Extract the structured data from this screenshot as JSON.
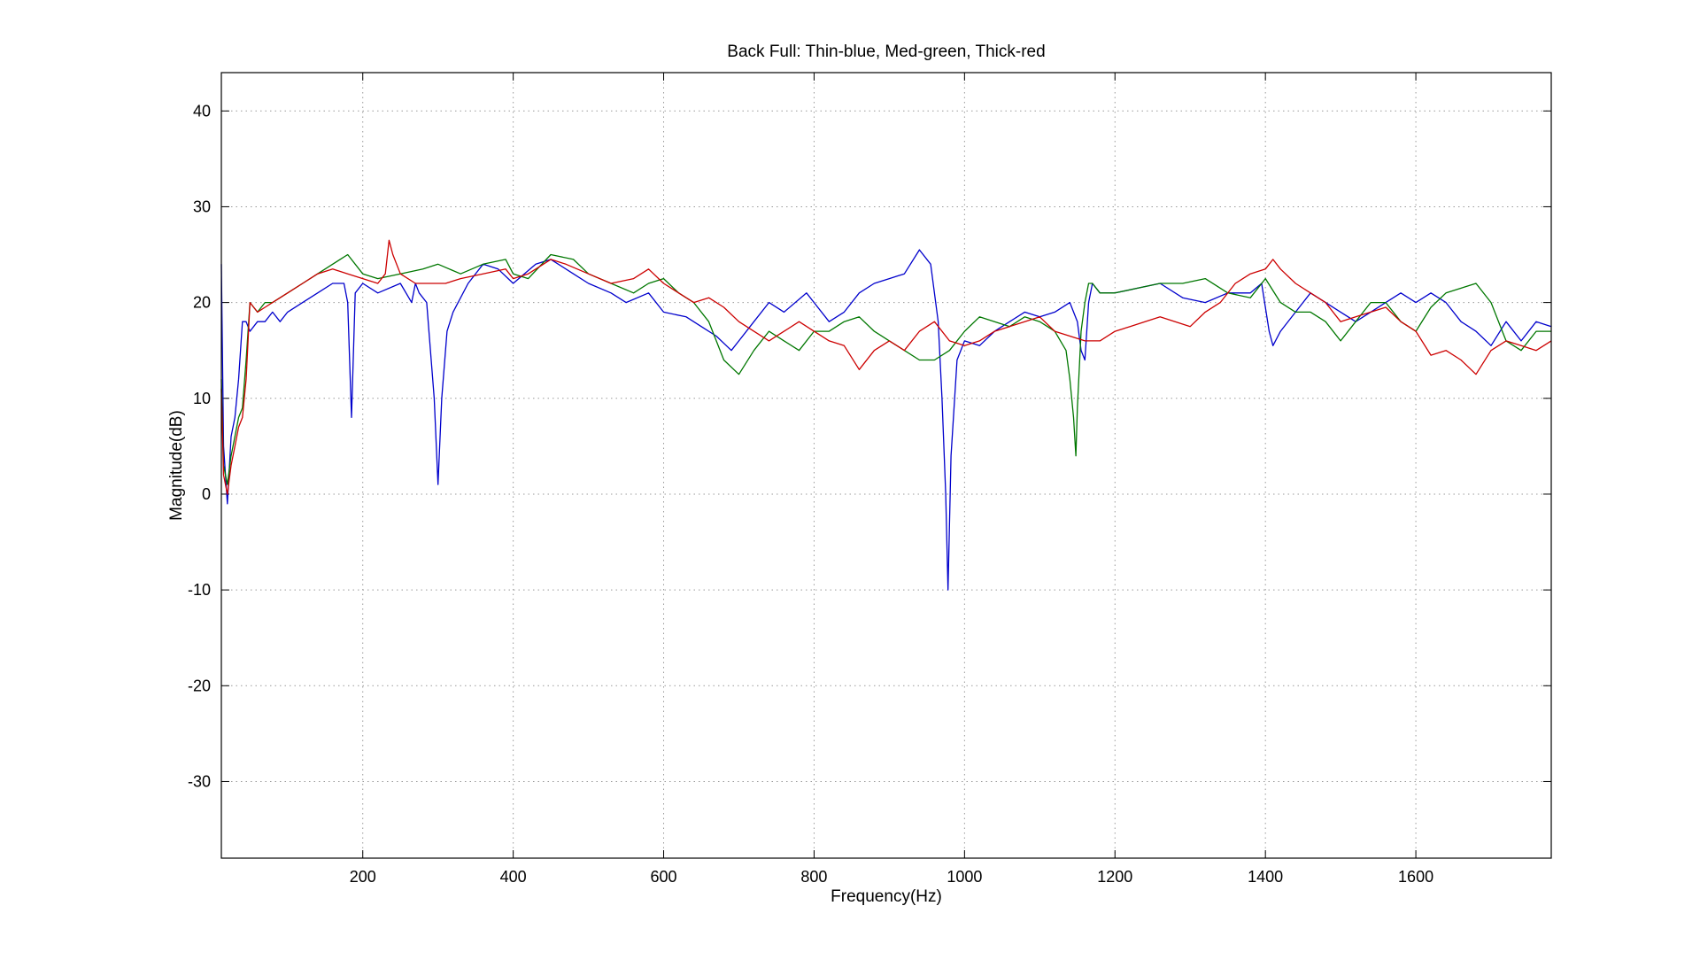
{
  "chart_data": {
    "type": "line",
    "title": "Back Full: Thin-blue, Med-green, Thick-red",
    "xlabel": "Frequency(Hz)",
    "ylabel": "Magnitude(dB)",
    "xlim": [
      12,
      1780
    ],
    "ylim": [
      -38,
      44
    ],
    "x_ticks": [
      200,
      400,
      600,
      800,
      1000,
      1200,
      1400,
      1600
    ],
    "y_ticks": [
      -30,
      -20,
      -10,
      0,
      10,
      20,
      30,
      40
    ],
    "grid": true,
    "series": [
      {
        "color": "#0000cc",
        "x": [
          12,
          15,
          20,
          25,
          30,
          35,
          40,
          45,
          50,
          60,
          70,
          80,
          90,
          100,
          120,
          140,
          160,
          175,
          180,
          185,
          190,
          200,
          220,
          250,
          265,
          270,
          275,
          285,
          295,
          300,
          305,
          312,
          320,
          340,
          360,
          380,
          400,
          430,
          450,
          480,
          500,
          530,
          550,
          580,
          600,
          630,
          650,
          670,
          690,
          700,
          720,
          740,
          760,
          790,
          800,
          820,
          840,
          860,
          880,
          900,
          920,
          940,
          955,
          965,
          970,
          975,
          978,
          982,
          990,
          1000,
          1020,
          1040,
          1060,
          1080,
          1100,
          1120,
          1140,
          1150,
          1155,
          1160,
          1165,
          1170,
          1180,
          1200,
          1230,
          1260,
          1290,
          1320,
          1350,
          1380,
          1395,
          1405,
          1410,
          1420,
          1440,
          1460,
          1480,
          1500,
          1520,
          1540,
          1560,
          1580,
          1600,
          1620,
          1640,
          1660,
          1680,
          1700,
          1720,
          1740,
          1760,
          1780
        ],
        "y": [
          24,
          5,
          -1,
          6,
          8,
          12,
          18,
          18,
          17,
          18,
          18,
          19,
          18,
          19,
          20,
          21,
          22,
          22,
          20,
          8,
          21,
          22,
          21,
          22,
          20,
          22,
          21,
          20,
          10,
          1,
          10,
          17,
          19,
          22,
          24,
          23.5,
          22,
          24,
          24.5,
          23,
          22,
          21,
          20,
          21,
          19,
          18.5,
          17.5,
          16.5,
          15,
          16,
          18,
          20,
          19,
          21,
          20,
          18,
          19,
          21,
          22,
          22.5,
          23,
          25.5,
          24,
          18,
          10,
          0,
          -10,
          4,
          14,
          16,
          15.5,
          17,
          18,
          19,
          18.5,
          19,
          20,
          18,
          15,
          14,
          20,
          22,
          21,
          21,
          21.5,
          22,
          20.5,
          20,
          21,
          21,
          22,
          17,
          15.5,
          17,
          19,
          21,
          20,
          19,
          18,
          19,
          20,
          21,
          20,
          21,
          20,
          18,
          17,
          15.5,
          18,
          16,
          18,
          17.5
        ]
      },
      {
        "color": "#007700",
        "x": [
          12,
          15,
          20,
          25,
          30,
          35,
          40,
          45,
          50,
          60,
          70,
          80,
          100,
          120,
          140,
          160,
          180,
          200,
          220,
          250,
          280,
          300,
          330,
          360,
          390,
          400,
          420,
          450,
          480,
          500,
          530,
          560,
          580,
          600,
          620,
          640,
          660,
          680,
          700,
          720,
          740,
          760,
          780,
          800,
          820,
          840,
          860,
          880,
          900,
          920,
          940,
          960,
          980,
          1000,
          1020,
          1040,
          1060,
          1080,
          1100,
          1120,
          1135,
          1140,
          1145,
          1148,
          1150,
          1155,
          1160,
          1165,
          1170,
          1180,
          1200,
          1230,
          1260,
          1290,
          1320,
          1350,
          1380,
          1400,
          1420,
          1440,
          1460,
          1480,
          1500,
          1520,
          1540,
          1560,
          1580,
          1600,
          1620,
          1640,
          1660,
          1680,
          1700,
          1720,
          1740,
          1760,
          1780
        ],
        "y": [
          12,
          3,
          1,
          4,
          6,
          8,
          9,
          14,
          20,
          19,
          20,
          20,
          21,
          22,
          23,
          24,
          25,
          23,
          22.5,
          23,
          23.5,
          24,
          23,
          24,
          24.5,
          23,
          22.5,
          25,
          24.5,
          23,
          22,
          21,
          22,
          22.5,
          21,
          20,
          18,
          14,
          12.5,
          15,
          17,
          16,
          15,
          17,
          17,
          18,
          18.5,
          17,
          16,
          15,
          14,
          14,
          15,
          17,
          18.5,
          18,
          17.5,
          18.5,
          18,
          17,
          15,
          12,
          8,
          4,
          9,
          17,
          20,
          22,
          22,
          21,
          21,
          21.5,
          22,
          22,
          22.5,
          21,
          20.5,
          22.5,
          20,
          19,
          19,
          18,
          16,
          18,
          20,
          20,
          18,
          17,
          19.5,
          21,
          21.5,
          22,
          20,
          16,
          15,
          17,
          17
        ]
      },
      {
        "color": "#cc0000",
        "x": [
          12,
          15,
          20,
          25,
          30,
          35,
          40,
          45,
          50,
          60,
          70,
          80,
          100,
          120,
          140,
          160,
          180,
          200,
          220,
          230,
          235,
          240,
          250,
          270,
          290,
          310,
          330,
          360,
          390,
          400,
          420,
          450,
          470,
          500,
          530,
          560,
          580,
          600,
          620,
          640,
          660,
          680,
          700,
          720,
          740,
          760,
          780,
          800,
          820,
          840,
          860,
          880,
          900,
          920,
          940,
          960,
          980,
          1000,
          1020,
          1040,
          1060,
          1080,
          1100,
          1120,
          1140,
          1160,
          1180,
          1200,
          1220,
          1240,
          1260,
          1280,
          1300,
          1320,
          1340,
          1360,
          1380,
          1400,
          1410,
          1420,
          1440,
          1460,
          1480,
          1500,
          1520,
          1540,
          1560,
          1580,
          1600,
          1620,
          1640,
          1660,
          1680,
          1700,
          1720,
          1740,
          1760,
          1780
        ],
        "y": [
          11,
          2,
          0,
          3,
          5,
          7,
          8,
          12,
          20,
          19,
          19.5,
          20,
          21,
          22,
          23,
          23.5,
          23,
          22.5,
          22,
          23,
          26.5,
          25,
          23,
          22,
          22,
          22,
          22.5,
          23,
          23.5,
          22.5,
          23,
          24.5,
          24,
          23,
          22,
          22.5,
          23.5,
          22,
          21,
          20,
          20.5,
          19.5,
          18,
          17,
          16,
          17,
          18,
          17,
          16,
          15.5,
          13,
          15,
          16,
          15,
          17,
          18,
          16,
          15.5,
          16,
          17,
          17.5,
          18,
          18.5,
          17,
          16.5,
          16,
          16,
          17,
          17.5,
          18,
          18.5,
          18,
          17.5,
          19,
          20,
          22,
          23,
          23.5,
          24.5,
          23.5,
          22,
          21,
          20,
          18,
          18.5,
          19,
          19.5,
          18,
          17,
          14.5,
          15,
          14,
          12.5,
          15,
          16,
          15.5,
          15,
          16
        ]
      }
    ]
  }
}
